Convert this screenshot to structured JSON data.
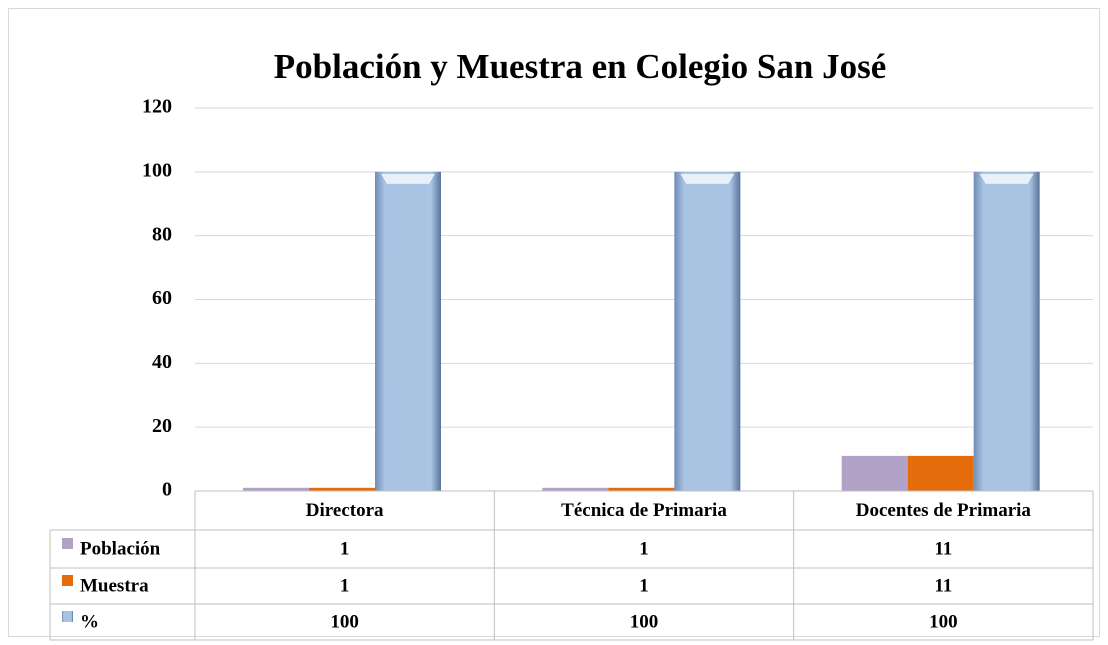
{
  "chart_data": {
    "type": "bar",
    "title": "Población y Muestra en Colegio San José",
    "categories": [
      "Directora",
      "Técnica de Primaria",
      "Docentes de Primaria"
    ],
    "series": [
      {
        "name": "Población",
        "color": "#b3a2c7",
        "values": [
          1,
          1,
          11
        ]
      },
      {
        "name": "Muestra",
        "color": "#e46c0a",
        "values": [
          1,
          1,
          11
        ]
      },
      {
        "name": "%",
        "color": "#95b3d7",
        "values": [
          100,
          100,
          100
        ]
      }
    ],
    "ylim": [
      0,
      120
    ],
    "yticks": [
      0,
      20,
      40,
      60,
      80,
      100,
      120
    ],
    "grid": true
  }
}
